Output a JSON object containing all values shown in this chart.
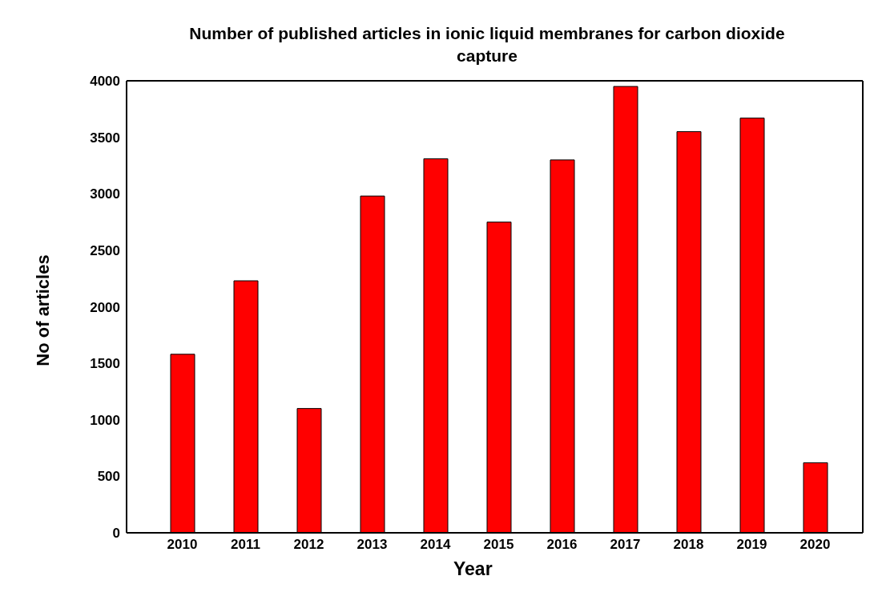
{
  "chart_data": {
    "type": "bar",
    "title": "Number of published articles in ionic liquid membranes for carbon dioxide capture",
    "xlabel": "Year",
    "ylabel": "No of articles",
    "categories": [
      "2010",
      "2011",
      "2012",
      "2013",
      "2014",
      "2015",
      "2016",
      "2017",
      "2018",
      "2019",
      "2020"
    ],
    "values": [
      1580,
      2230,
      1100,
      2980,
      3310,
      2750,
      3300,
      3950,
      3550,
      3670,
      620
    ],
    "color": "#ff0000",
    "ylim": [
      0,
      4000
    ],
    "yticks": [
      0,
      500,
      1000,
      1500,
      2000,
      2500,
      3000,
      3500,
      4000
    ],
    "grid": false,
    "legend": false
  }
}
